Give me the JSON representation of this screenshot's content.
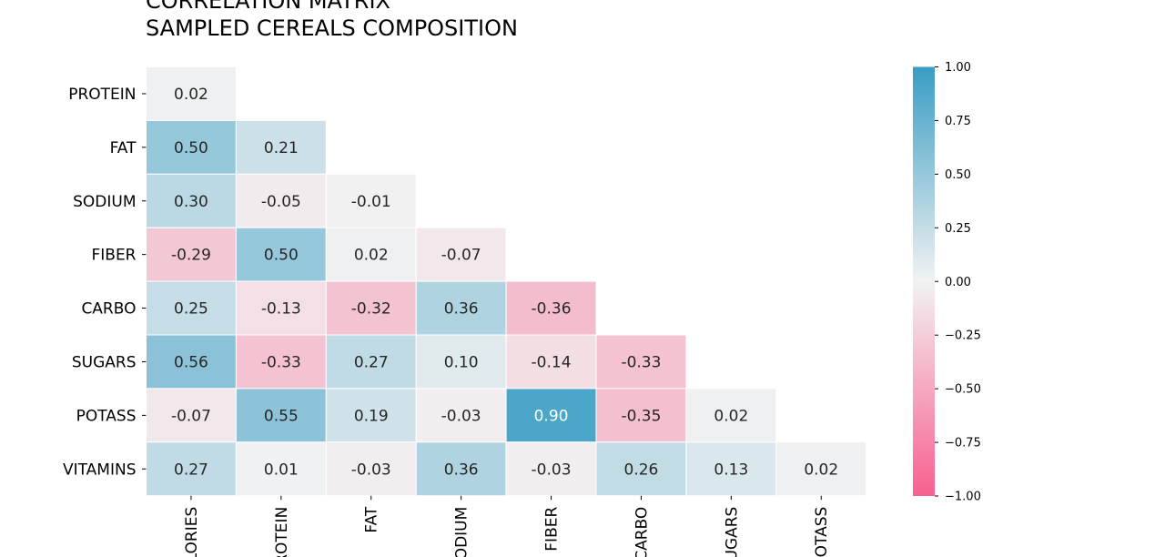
{
  "chart_data": {
    "type": "heatmap",
    "title": [
      "CORRELATION MATRIX",
      "SAMPLED CEREALS COMPOSITION"
    ],
    "row_labels": [
      "PROTEIN",
      "FAT",
      "SODIUM",
      "FIBER",
      "CARBO",
      "SUGARS",
      "POTASS",
      "VITAMINS"
    ],
    "col_labels": [
      "CALORIES",
      "PROTEIN",
      "FAT",
      "SODIUM",
      "FIBER",
      "CARBO",
      "SUGARS",
      "POTASS"
    ],
    "values": [
      [
        0.02
      ],
      [
        0.5,
        0.21
      ],
      [
        0.3,
        -0.05,
        -0.01
      ],
      [
        -0.29,
        0.5,
        0.02,
        -0.07
      ],
      [
        0.25,
        -0.13,
        -0.32,
        0.36,
        -0.36
      ],
      [
        0.56,
        -0.33,
        0.27,
        0.1,
        -0.14,
        -0.33
      ],
      [
        -0.07,
        0.55,
        0.19,
        -0.03,
        0.9,
        -0.35,
        0.02
      ],
      [
        0.27,
        0.01,
        -0.03,
        0.36,
        -0.03,
        0.26,
        0.13,
        0.02
      ]
    ],
    "value_labels": [
      [
        "0.02"
      ],
      [
        "0.50",
        "0.21"
      ],
      [
        "0.30",
        "-0.05",
        "-0.01"
      ],
      [
        "-0.29",
        "0.50",
        "0.02",
        "-0.07"
      ],
      [
        "0.25",
        "-0.13",
        "-0.32",
        "0.36",
        "-0.36"
      ],
      [
        "0.56",
        "-0.33",
        "0.27",
        "0.10",
        "-0.14",
        "-0.33"
      ],
      [
        "-0.07",
        "0.55",
        "0.19",
        "-0.03",
        "0.90",
        "-0.35",
        "0.02"
      ],
      [
        "0.27",
        "0.01",
        "-0.03",
        "0.36",
        "-0.03",
        "0.26",
        "0.13",
        "0.02"
      ]
    ],
    "colorbar": {
      "range": [
        -1.0,
        1.0
      ],
      "ticks": [
        1.0,
        0.75,
        0.5,
        0.25,
        0.0,
        -0.25,
        -0.5,
        -0.75,
        -1.0
      ],
      "tick_labels": [
        "1.00",
        "0.75",
        "0.50",
        "0.25",
        "0.00",
        "−0.25",
        "−0.50",
        "−0.75",
        "−1.00"
      ],
      "colors": {
        "positive": "#3a9dc4",
        "neutral": "#f2f2f2",
        "negative": "#f7608e"
      }
    },
    "mask": "upper-triangle",
    "grid": false
  }
}
